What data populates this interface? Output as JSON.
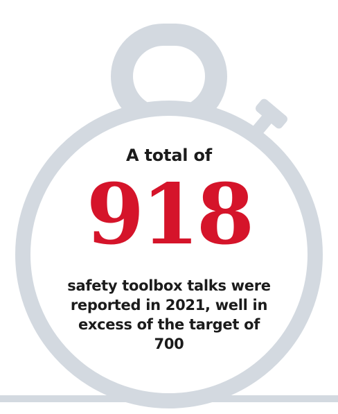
{
  "colors": {
    "stopwatch": "#d3d9e0",
    "text": "#1b1b1b",
    "highlight": "#d5142a",
    "background": "#ffffff"
  },
  "graphic": {
    "icon": "stopwatch-icon"
  },
  "stat": {
    "intro": "A total of",
    "value": "918",
    "description": "safety toolbox talks were reported in 2021, well in excess of the target of 700"
  }
}
